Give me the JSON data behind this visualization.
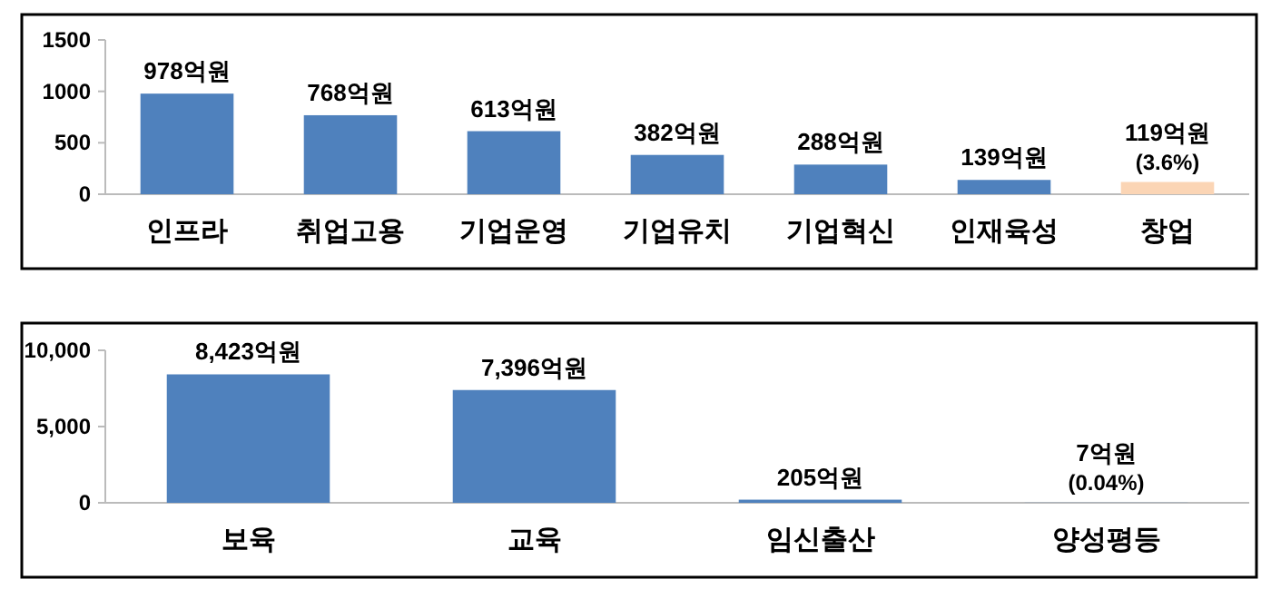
{
  "chart_data": [
    {
      "type": "bar",
      "categories": [
        "인프라",
        "취업고용",
        "기업운영",
        "기업유치",
        "기업혁신",
        "인재육성",
        "창업"
      ],
      "values": [
        978,
        768,
        613,
        382,
        288,
        139,
        119
      ],
      "colors": [
        "#4f81bd",
        "#4f81bd",
        "#4f81bd",
        "#4f81bd",
        "#4f81bd",
        "#4f81bd",
        "#fbd5b5"
      ],
      "value_labels": [
        "978억원",
        "768억원",
        "613억원",
        "382억원",
        "288억원",
        "139억원",
        "119억원 (3.6%)"
      ],
      "ylim": [
        0,
        1500
      ],
      "yticks": [
        0,
        500,
        1000,
        1500
      ],
      "grid": false
    },
    {
      "type": "bar",
      "categories": [
        "보육",
        "교육",
        "임신출산",
        "양성평등"
      ],
      "values": [
        8423,
        7396,
        205,
        7
      ],
      "colors": [
        "#4f81bd",
        "#4f81bd",
        "#4f81bd",
        "#4f81bd"
      ],
      "value_labels": [
        "8,423억원",
        "7,396억원",
        "205억원",
        "7억원 (0.04%)"
      ],
      "ylim": [
        0,
        10000
      ],
      "yticks": [
        0,
        {
          "value": 5000,
          "label": "5,000"
        },
        {
          "value": 10000,
          "label": "10,000"
        }
      ],
      "grid": false
    }
  ]
}
